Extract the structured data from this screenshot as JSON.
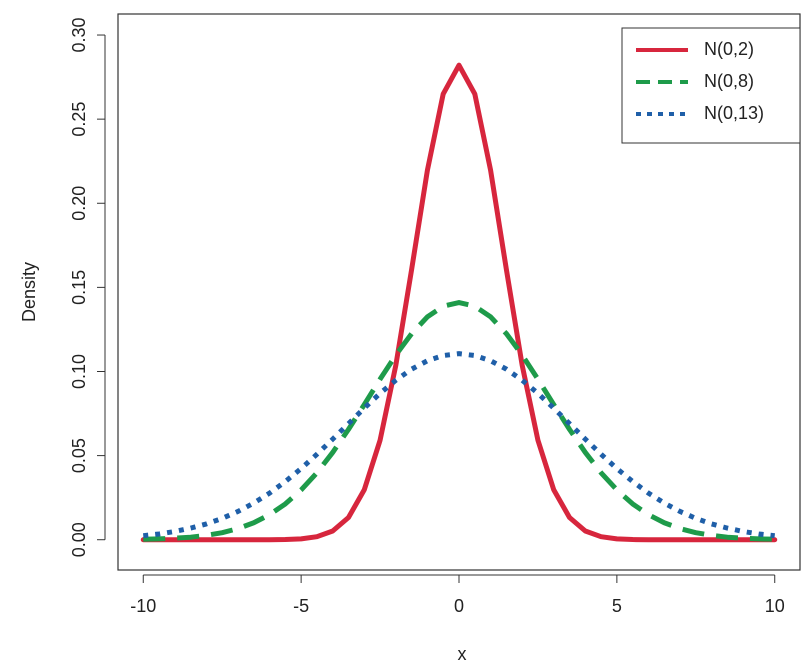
{
  "chart_data": {
    "type": "line",
    "xlabel": "x",
    "ylabel": "Density",
    "x": [
      -10,
      -9.5,
      -9,
      -8.5,
      -8,
      -7.5,
      -7,
      -6.5,
      -6,
      -5.5,
      -5,
      -4.5,
      -4,
      -3.5,
      -3,
      -2.5,
      -2,
      -1.5,
      -1,
      -0.5,
      0,
      0.5,
      1,
      1.5,
      2,
      2.5,
      3,
      3.5,
      4,
      4.5,
      5,
      5.5,
      6,
      6.5,
      7,
      7.5,
      8,
      8.5,
      9,
      9.5,
      10
    ],
    "series": [
      {
        "name": "N(0,2)",
        "color": "#d7263d",
        "dash": "solid",
        "values": [
          0,
          0,
          0,
          0,
          0,
          0,
          0,
          0,
          0,
          0.0001,
          0.0005,
          0.0018,
          0.0052,
          0.0132,
          0.0297,
          0.0591,
          0.1038,
          0.1607,
          0.2197,
          0.265,
          0.2821,
          0.265,
          0.2197,
          0.1607,
          0.1038,
          0.0591,
          0.0297,
          0.0132,
          0.0052,
          0.0018,
          0.0005,
          0.0001,
          0,
          0,
          0,
          0,
          0,
          0,
          0,
          0,
          0
        ]
      },
      {
        "name": "N(0,8)",
        "color": "#1e9b4a",
        "dash": "dashed",
        "values": [
          0.0003,
          0.0005,
          0.0009,
          0.0015,
          0.0026,
          0.0042,
          0.0066,
          0.0101,
          0.0149,
          0.0213,
          0.0296,
          0.0398,
          0.0519,
          0.0656,
          0.0803,
          0.0954,
          0.1098,
          0.1225,
          0.1325,
          0.1388,
          0.141,
          0.1388,
          0.1325,
          0.1225,
          0.1098,
          0.0954,
          0.0803,
          0.0656,
          0.0519,
          0.0398,
          0.0296,
          0.0213,
          0.0149,
          0.0101,
          0.0066,
          0.0042,
          0.0026,
          0.0015,
          0.0009,
          0.0005,
          0.0003
        ]
      },
      {
        "name": "N(0,13)",
        "color": "#1f5fa8",
        "dash": "dotted",
        "values": [
          0.0024,
          0.0034,
          0.0049,
          0.0069,
          0.0094,
          0.0127,
          0.0168,
          0.0218,
          0.0277,
          0.0346,
          0.0423,
          0.0508,
          0.0598,
          0.069,
          0.0782,
          0.087,
          0.0948,
          0.1014,
          0.1064,
          0.1095,
          0.1106,
          0.1095,
          0.1064,
          0.1014,
          0.0948,
          0.087,
          0.0782,
          0.069,
          0.0598,
          0.0508,
          0.0423,
          0.0346,
          0.0277,
          0.0218,
          0.0168,
          0.0127,
          0.0094,
          0.0069,
          0.0049,
          0.0034,
          0.0024
        ]
      }
    ],
    "xlim": [
      -10.8,
      10.8
    ],
    "ylim": [
      -0.018,
      0.3125
    ],
    "xticks": [
      -10,
      -5,
      0,
      5,
      10
    ],
    "yticks": [
      {
        "value": 0,
        "label": "0.00"
      },
      {
        "value": 0.05,
        "label": "0.05"
      },
      {
        "value": 0.1,
        "label": "0.10"
      },
      {
        "value": 0.15,
        "label": "0.15"
      },
      {
        "value": 0.2,
        "label": "0.20"
      },
      {
        "value": 0.25,
        "label": "0.25"
      },
      {
        "value": 0.3,
        "label": "0.30"
      }
    ],
    "legend": "top-right"
  }
}
